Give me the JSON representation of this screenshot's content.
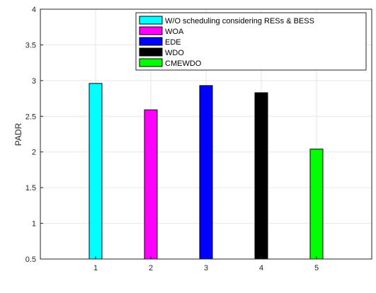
{
  "chart_data": {
    "type": "bar",
    "title": "",
    "xlabel": "",
    "ylabel": "PADR",
    "categories": [
      "1",
      "2",
      "3",
      "4",
      "5"
    ],
    "values": [
      2.96,
      2.59,
      2.93,
      2.83,
      2.04
    ],
    "bar_colors": [
      "#00ffff",
      "#ff00ff",
      "#0000ff",
      "#000000",
      "#00ff00"
    ],
    "ylim": [
      0.5,
      4
    ],
    "yticks": [
      "0.5",
      "1",
      "1.5",
      "2",
      "2.5",
      "3",
      "3.5",
      "4"
    ],
    "grid": true,
    "legend_position": "top-right",
    "legend": [
      {
        "label": "W/O scheduling considering RESs & BESS",
        "color": "#00ffff"
      },
      {
        "label": "WOA",
        "color": "#ff00ff"
      },
      {
        "label": "EDE",
        "color": "#0000ff"
      },
      {
        "label": "WDO",
        "color": "#000000"
      },
      {
        "label": "CMEWDO",
        "color": "#00ff00"
      }
    ]
  }
}
